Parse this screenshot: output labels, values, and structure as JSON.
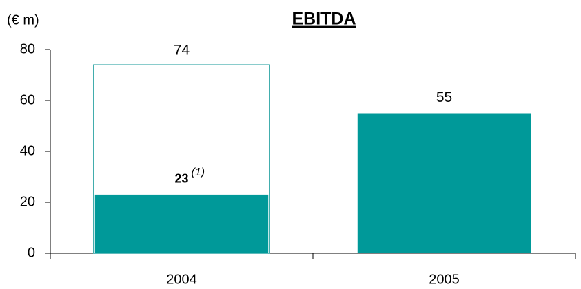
{
  "chart_data": {
    "type": "bar",
    "title": "EBITDA",
    "title_color": "#1a237e",
    "y_unit": "(€ m)",
    "categories": [
      "2004",
      "2005"
    ],
    "series": [
      {
        "style": "outline",
        "color": "#2aa3a3",
        "values": [
          74,
          null
        ],
        "label_colors": [
          "#000000",
          "#000000"
        ]
      },
      {
        "style": "fill",
        "color": "#009999",
        "values": [
          23,
          55
        ],
        "label_colors": [
          "#1a1a7a",
          "#000000"
        ]
      }
    ],
    "annotations": [
      "(1)"
    ],
    "ylim": [
      0,
      80
    ],
    "yticks": [
      0,
      20,
      40,
      60,
      80
    ],
    "grid": false
  }
}
